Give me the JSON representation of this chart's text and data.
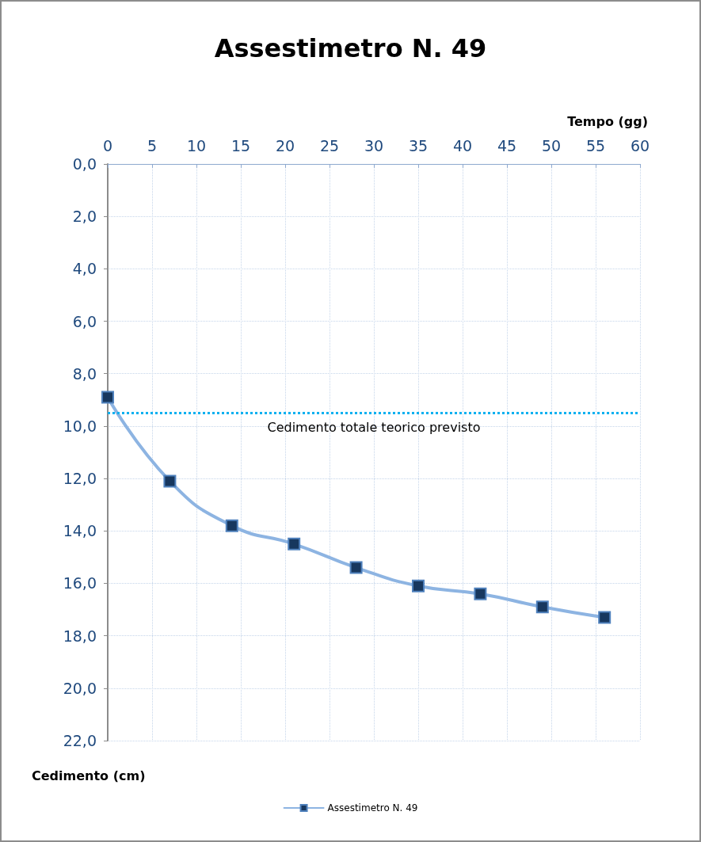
{
  "chart_data": {
    "type": "line",
    "title": "Assestimetro N. 49",
    "xlabel": "Tempo (gg)",
    "ylabel": "Cedimento (cm)",
    "x": [
      0,
      7,
      14,
      21,
      28,
      35,
      42,
      49,
      56
    ],
    "series": [
      {
        "name": "Assestimetro N. 49",
        "color": "#8db4e2",
        "values": [
          8.9,
          12.1,
          13.8,
          14.5,
          15.4,
          16.1,
          16.4,
          16.9,
          17.3
        ]
      }
    ],
    "xlim": [
      0,
      60
    ],
    "xticks": [
      0,
      5,
      10,
      15,
      20,
      25,
      30,
      35,
      40,
      45,
      50,
      55,
      60
    ],
    "ylim": [
      22,
      0
    ],
    "yticks": [
      {
        "value": 0,
        "label": "0,0"
      },
      {
        "value": 2,
        "label": "2,0"
      },
      {
        "value": 4,
        "label": "4,0"
      },
      {
        "value": 6,
        "label": "6,0"
      },
      {
        "value": 8,
        "label": "8,0"
      },
      {
        "value": 10,
        "label": "10,0"
      },
      {
        "value": 12,
        "label": "12,0"
      },
      {
        "value": 14,
        "label": "14,0"
      },
      {
        "value": 16,
        "label": "16,0"
      },
      {
        "value": 18,
        "label": "18,0"
      },
      {
        "value": 20,
        "label": "20,0"
      },
      {
        "value": 22,
        "label": "22,0"
      }
    ],
    "ref_lines": [
      {
        "axis": "y",
        "value": 9.5,
        "label": "Cedimento totale teorico previsto",
        "color": "#00b0f0",
        "line_style": "dotted"
      }
    ],
    "grid": true,
    "legend": "bottom",
    "marker": "square",
    "line_style": "solid"
  }
}
